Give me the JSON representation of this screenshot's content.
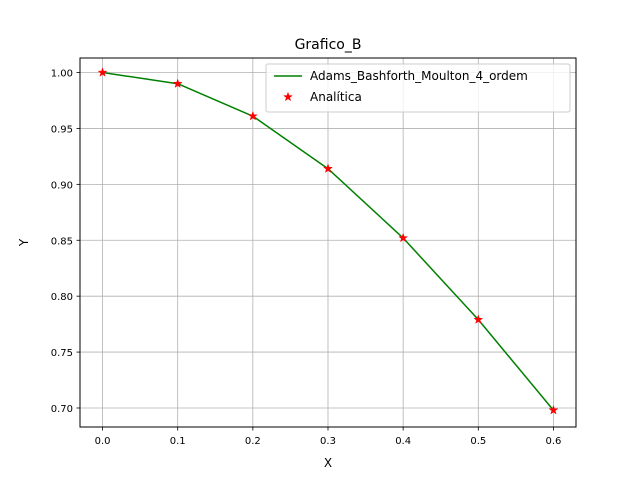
{
  "chart_data": {
    "type": "line",
    "title": "Grafico_B",
    "xlabel": "X",
    "ylabel": "Y",
    "xlim": [
      -0.03,
      0.63
    ],
    "ylim": [
      0.683,
      1.013
    ],
    "xticks": [
      0.0,
      0.1,
      0.2,
      0.3,
      0.4,
      0.5,
      0.6
    ],
    "xtick_labels": [
      "0.0",
      "0.1",
      "0.2",
      "0.3",
      "0.4",
      "0.5",
      "0.6"
    ],
    "yticks": [
      0.7,
      0.75,
      0.8,
      0.85,
      0.9,
      0.95,
      1.0
    ],
    "ytick_labels": [
      "0.70",
      "0.75",
      "0.80",
      "0.85",
      "0.90",
      "0.95",
      "1.00"
    ],
    "grid": true,
    "legend_position": "top-right",
    "x": [
      0.0,
      0.1,
      0.2,
      0.3,
      0.4,
      0.5,
      0.6
    ],
    "series": [
      {
        "name": "Adams_Bashforth_Moulton_4_ordem",
        "style": "line",
        "color": "#008000",
        "values": [
          1.0,
          0.99,
          0.961,
          0.914,
          0.852,
          0.779,
          0.698
        ]
      },
      {
        "name": "Analítica",
        "style": "star-markers",
        "color": "#ff0000",
        "values": [
          1.0,
          0.99,
          0.961,
          0.914,
          0.852,
          0.779,
          0.698
        ]
      }
    ]
  }
}
